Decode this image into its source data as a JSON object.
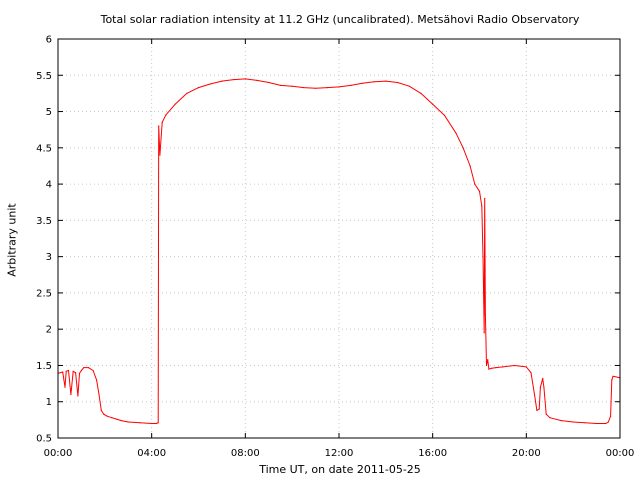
{
  "title": "Total solar radiation intensity at 11.2 GHz (uncalibrated). Metsähovi Radio Observatory",
  "xlabel": "Time UT, on date 2011-05-25",
  "ylabel": "Arbitrary unit",
  "chart_data": {
    "type": "line",
    "title": "Total solar radiation intensity at 11.2 GHz (uncalibrated). Metsähovi Radio Observatory",
    "xlabel": "Time UT, on date 2011-05-25",
    "ylabel": "Arbitrary unit",
    "xlim": [
      0,
      24
    ],
    "ylim": [
      0.5,
      6
    ],
    "grid": true,
    "x_ticks": [
      0,
      4,
      8,
      12,
      16,
      20,
      24
    ],
    "x_tick_labels": [
      "00:00",
      "04:00",
      "08:00",
      "12:00",
      "16:00",
      "20:00",
      "00:00"
    ],
    "y_ticks": [
      0.5,
      1,
      1.5,
      2,
      2.5,
      3,
      3.5,
      4,
      4.5,
      5,
      5.5,
      6
    ],
    "y_tick_labels": [
      "0.5",
      "1",
      "1.5",
      "2",
      "2.5",
      "3",
      "3.5",
      "4",
      "4.5",
      "5",
      "5.5",
      "6"
    ],
    "series": [
      {
        "color": "#ff0000",
        "x": [
          0,
          0.2,
          0.3,
          0.35,
          0.45,
          0.55,
          0.65,
          0.75,
          0.85,
          0.92,
          1.0,
          1.1,
          1.3,
          1.5,
          1.65,
          1.75,
          1.85,
          1.95,
          2.0,
          2.1,
          2.3,
          2.5,
          2.7,
          3.0,
          3.5,
          4.0,
          4.2,
          4.28,
          4.3,
          4.35,
          4.45,
          4.6,
          5.0,
          5.5,
          6.0,
          6.5,
          7.0,
          7.5,
          8.0,
          8.5,
          9.0,
          9.5,
          10.0,
          10.5,
          11.0,
          11.5,
          12.0,
          12.5,
          13.0,
          13.5,
          14.0,
          14.5,
          15.0,
          15.5,
          16.0,
          16.5,
          17.0,
          17.3,
          17.6,
          17.8,
          18.0,
          18.1,
          18.15,
          18.2,
          18.22,
          18.25,
          18.3,
          18.35,
          18.4,
          18.5,
          18.7,
          19.0,
          19.5,
          20.0,
          20.2,
          20.35,
          20.45,
          20.55,
          20.6,
          20.7,
          20.75,
          20.85,
          21.0,
          21.5,
          22.0,
          22.5,
          23.0,
          23.4,
          23.5,
          23.6,
          23.65,
          23.7,
          24.0
        ],
        "y": [
          1.39,
          1.41,
          1.2,
          1.42,
          1.43,
          1.1,
          1.42,
          1.4,
          1.08,
          1.39,
          1.43,
          1.47,
          1.47,
          1.43,
          1.3,
          1.1,
          0.88,
          0.83,
          0.82,
          0.8,
          0.78,
          0.76,
          0.74,
          0.72,
          0.71,
          0.7,
          0.7,
          0.71,
          4.8,
          4.4,
          4.85,
          4.95,
          5.1,
          5.25,
          5.33,
          5.38,
          5.42,
          5.44,
          5.45,
          5.43,
          5.4,
          5.36,
          5.35,
          5.33,
          5.32,
          5.33,
          5.34,
          5.36,
          5.39,
          5.41,
          5.42,
          5.4,
          5.35,
          5.25,
          5.1,
          4.95,
          4.7,
          4.5,
          4.25,
          4.0,
          3.9,
          3.7,
          3.0,
          1.95,
          3.8,
          2.2,
          1.5,
          1.58,
          1.45,
          1.46,
          1.47,
          1.48,
          1.5,
          1.48,
          1.4,
          1.1,
          0.88,
          0.9,
          1.2,
          1.32,
          1.2,
          0.83,
          0.78,
          0.74,
          0.72,
          0.71,
          0.7,
          0.7,
          0.72,
          0.8,
          1.3,
          1.35,
          1.33
        ]
      }
    ]
  }
}
